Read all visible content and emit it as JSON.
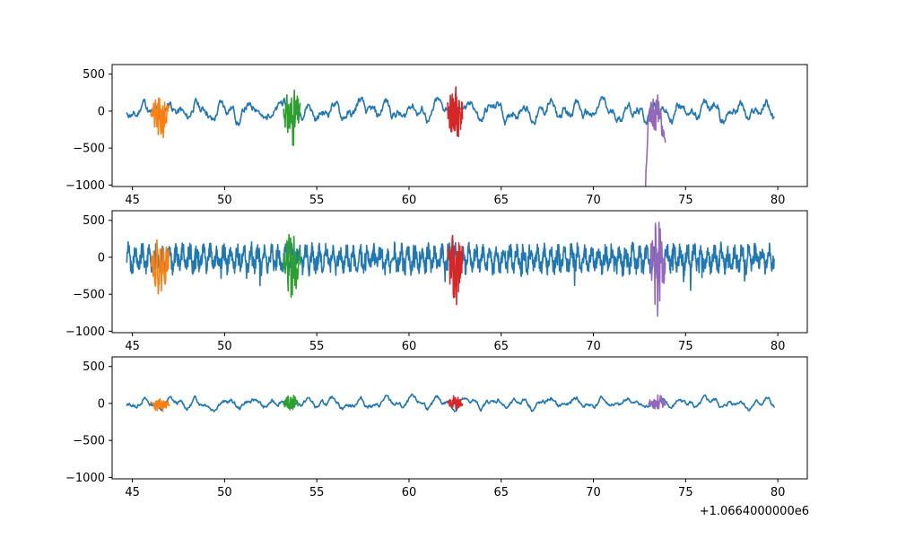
{
  "chart_data": [
    {
      "type": "line",
      "title": "",
      "xlabel": "",
      "ylabel": "",
      "xlim": [
        43.9,
        81.6
      ],
      "ylim": [
        -1020,
        630
      ],
      "xticks": [
        45,
        50,
        55,
        60,
        65,
        70,
        75,
        80
      ],
      "yticks": [
        -1000,
        -500,
        0,
        500
      ],
      "xtick_labels": [
        "45",
        "50",
        "55",
        "60",
        "65",
        "70",
        "75",
        "80"
      ],
      "ytick_labels": [
        "−1000",
        "−500",
        "0",
        "500"
      ],
      "grid": false,
      "series": [
        {
          "color": "#1f77b4",
          "start": 44.7,
          "end": 79.8,
          "amplitude": 150,
          "offset": 0,
          "seed": 11,
          "kind": "slow"
        },
        {
          "color": "#ff7f0e",
          "start": 46.0,
          "end": 47.0,
          "amplitude": 280,
          "offset": -120,
          "seed": 21,
          "kind": "burst"
        },
        {
          "color": "#2ca02c",
          "start": 53.2,
          "end": 54.1,
          "amplitude": 380,
          "offset": -90,
          "seed": 31,
          "kind": "burst"
        },
        {
          "color": "#d62728",
          "start": 62.1,
          "end": 62.9,
          "amplitude": 420,
          "offset": -40,
          "seed": 41,
          "kind": "burst"
        },
        {
          "color": "#9467bd",
          "start": 72.8,
          "end": 73.9,
          "amplitude": 560,
          "offset": -420,
          "seed": 51,
          "kind": "dip"
        }
      ]
    },
    {
      "type": "line",
      "title": "",
      "xlabel": "",
      "ylabel": "",
      "xlim": [
        43.9,
        81.6
      ],
      "ylim": [
        -1020,
        630
      ],
      "xticks": [
        45,
        50,
        55,
        60,
        65,
        70,
        75,
        80
      ],
      "yticks": [
        -1000,
        -500,
        0,
        500
      ],
      "xtick_labels": [
        "45",
        "50",
        "55",
        "60",
        "65",
        "70",
        "75",
        "80"
      ],
      "ytick_labels": [
        "−1000",
        "−500",
        "0",
        "500"
      ],
      "grid": false,
      "series": [
        {
          "color": "#1f77b4",
          "start": 44.7,
          "end": 79.8,
          "amplitude": 200,
          "offset": -20,
          "seed": 12,
          "kind": "fast"
        },
        {
          "color": "#ff7f0e",
          "start": 46.0,
          "end": 47.0,
          "amplitude": 360,
          "offset": -130,
          "seed": 22,
          "kind": "burst"
        },
        {
          "color": "#2ca02c",
          "start": 53.2,
          "end": 54.1,
          "amplitude": 420,
          "offset": -110,
          "seed": 32,
          "kind": "burst"
        },
        {
          "color": "#d62728",
          "start": 62.1,
          "end": 62.9,
          "amplitude": 480,
          "offset": -190,
          "seed": 42,
          "kind": "burst"
        },
        {
          "color": "#9467bd",
          "start": 73.1,
          "end": 73.9,
          "amplitude": 620,
          "offset": -150,
          "seed": 52,
          "kind": "burst"
        }
      ]
    },
    {
      "type": "line",
      "title": "",
      "xlabel": "",
      "ylabel": "",
      "xlim": [
        43.9,
        81.6
      ],
      "ylim": [
        -1020,
        630
      ],
      "xticks": [
        45,
        50,
        55,
        60,
        65,
        70,
        75,
        80
      ],
      "yticks": [
        -1000,
        -500,
        0,
        500
      ],
      "xtick_labels": [
        "45",
        "50",
        "55",
        "60",
        "65",
        "70",
        "75",
        "80"
      ],
      "ytick_labels": [
        "−1000",
        "−500",
        "0",
        "500"
      ],
      "x_offset_label": "+1.0664000000e6",
      "grid": false,
      "series": [
        {
          "color": "#1f77b4",
          "start": 44.7,
          "end": 79.8,
          "amplitude": 75,
          "offset": 0,
          "seed": 13,
          "kind": "slow"
        },
        {
          "color": "#ff7f0e",
          "start": 46.0,
          "end": 47.0,
          "amplitude": 90,
          "offset": -30,
          "seed": 23,
          "kind": "burst"
        },
        {
          "color": "#2ca02c",
          "start": 53.2,
          "end": 54.0,
          "amplitude": 110,
          "offset": 10,
          "seed": 33,
          "kind": "burst"
        },
        {
          "color": "#d62728",
          "start": 62.1,
          "end": 62.9,
          "amplitude": 90,
          "offset": 10,
          "seed": 43,
          "kind": "burst"
        },
        {
          "color": "#9467bd",
          "start": 73.0,
          "end": 73.9,
          "amplitude": 100,
          "offset": 20,
          "seed": 53,
          "kind": "burst"
        }
      ]
    }
  ]
}
